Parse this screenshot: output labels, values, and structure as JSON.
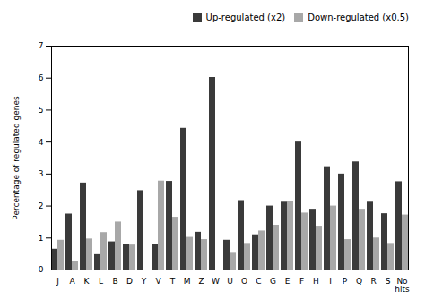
{
  "chart_data": {
    "type": "bar",
    "categories": [
      "J",
      "A",
      "K",
      "L",
      "B",
      "D",
      "Y",
      "V",
      "T",
      "M",
      "Z",
      "W",
      "U",
      "O",
      "C",
      "G",
      "E",
      "F",
      "H",
      "I",
      "P",
      "Q",
      "R",
      "S",
      "No\nhits"
    ],
    "series": [
      {
        "name": "Up-regulated (x2)",
        "color": "#3a3a3a",
        "values": [
          0.65,
          1.75,
          2.72,
          0.48,
          0.88,
          0.8,
          2.48,
          0.8,
          2.77,
          4.43,
          1.18,
          6.02,
          0.93,
          2.17,
          1.1,
          2.0,
          2.12,
          4.0,
          1.9,
          3.23,
          3.0,
          3.38,
          2.12,
          1.76,
          2.76
        ]
      },
      {
        "name": "Down-regulated (x0.5)",
        "color": "#a8a8a8",
        "values": [
          0.93,
          0.28,
          0.97,
          1.17,
          1.5,
          0.78,
          0.0,
          2.78,
          1.65,
          1.02,
          0.95,
          0.0,
          0.55,
          0.83,
          1.22,
          1.4,
          2.13,
          1.78,
          1.37,
          2.0,
          0.95,
          1.9,
          1.0,
          0.83,
          1.72
        ]
      }
    ],
    "ylabel": "Percentage of regulated genes",
    "ylim": [
      0,
      7
    ],
    "yticks": [
      0,
      1,
      2,
      3,
      4,
      5,
      6,
      7
    ],
    "legend": "upper right",
    "grid": false
  }
}
